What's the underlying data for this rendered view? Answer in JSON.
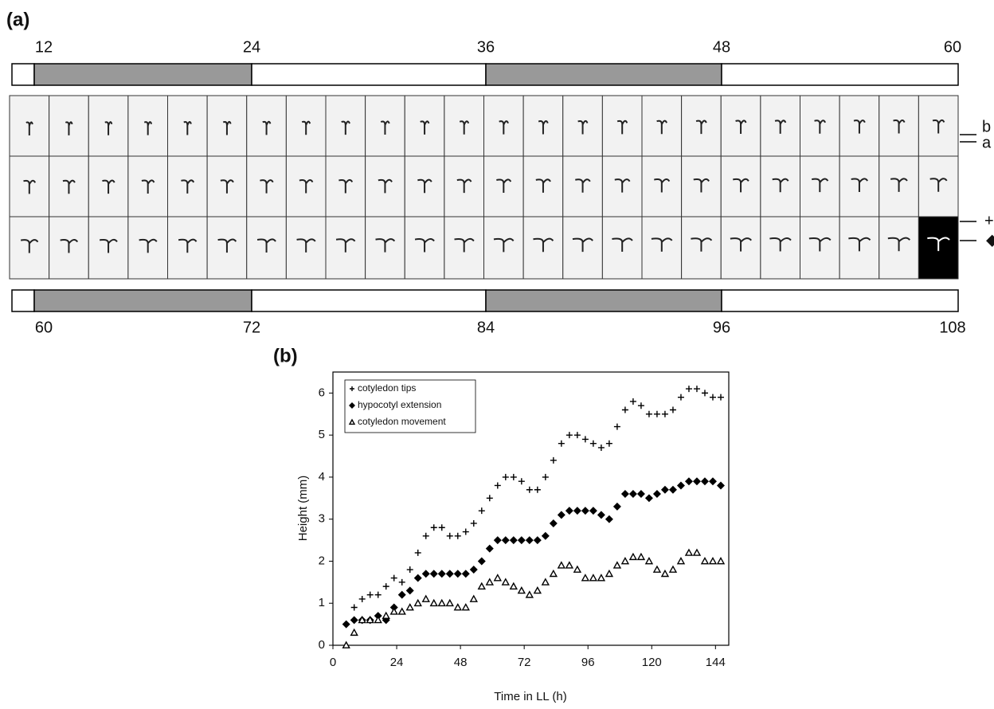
{
  "panel_a": {
    "label": "(a)",
    "top_ticks": [
      12,
      24,
      36,
      48,
      60
    ],
    "bottom_ticks": [
      60,
      72,
      84,
      96,
      108
    ],
    "row_labels": [
      "b",
      "a",
      "+",
      "◆"
    ]
  },
  "chart_data": {
    "type": "scatter",
    "panel_label": "(b)",
    "x_label": "Time in LL (h)",
    "y_label": "Height (mm)",
    "xlim": [
      0,
      149
    ],
    "ylim": [
      0,
      6.5
    ],
    "xticks": [
      0,
      24,
      48,
      72,
      96,
      120,
      144
    ],
    "yticks": [
      0,
      1,
      2,
      3,
      4,
      5,
      6
    ],
    "x": [
      5,
      8,
      11,
      14,
      17,
      20,
      23,
      26,
      29,
      32,
      35,
      38,
      41,
      44,
      47,
      50,
      53,
      56,
      59,
      62,
      65,
      68,
      71,
      74,
      77,
      80,
      83,
      86,
      89,
      92,
      95,
      98,
      101,
      104,
      107,
      110,
      113,
      116,
      119,
      122,
      125,
      128,
      131,
      134,
      137,
      140,
      143,
      146
    ],
    "series": [
      {
        "name": "cotyledon tips",
        "marker": "plus",
        "color": "#000000",
        "values": [
          0.5,
          0.9,
          1.1,
          1.2,
          1.2,
          1.4,
          1.6,
          1.5,
          1.8,
          2.2,
          2.6,
          2.8,
          2.8,
          2.6,
          2.6,
          2.7,
          2.9,
          3.2,
          3.5,
          3.8,
          4.0,
          4.0,
          3.9,
          3.7,
          3.7,
          4.0,
          4.4,
          4.8,
          5.0,
          5.0,
          4.9,
          4.8,
          4.7,
          4.8,
          5.2,
          5.6,
          5.8,
          5.7,
          5.5,
          5.5,
          5.5,
          5.6,
          5.9,
          6.1,
          6.1,
          6.0,
          5.9,
          5.9
        ]
      },
      {
        "name": "hypocotyl extension",
        "marker": "diamond",
        "color": "#000000",
        "values": [
          0.5,
          0.6,
          0.6,
          0.6,
          0.7,
          0.6,
          0.9,
          1.2,
          1.3,
          1.6,
          1.7,
          1.7,
          1.7,
          1.7,
          1.7,
          1.7,
          1.8,
          2.0,
          2.3,
          2.5,
          2.5,
          2.5,
          2.5,
          2.5,
          2.5,
          2.6,
          2.9,
          3.1,
          3.2,
          3.2,
          3.2,
          3.2,
          3.1,
          3.0,
          3.3,
          3.6,
          3.6,
          3.6,
          3.5,
          3.6,
          3.7,
          3.7,
          3.8,
          3.9,
          3.9,
          3.9,
          3.9,
          3.8
        ]
      },
      {
        "name": "cotyledon movement",
        "marker": "triangle",
        "color": "#000000",
        "values": [
          0,
          0.3,
          0.6,
          0.6,
          0.6,
          0.7,
          0.8,
          0.8,
          0.9,
          1.0,
          1.1,
          1.0,
          1.0,
          1.0,
          0.9,
          0.9,
          1.1,
          1.4,
          1.5,
          1.6,
          1.5,
          1.4,
          1.3,
          1.2,
          1.3,
          1.5,
          1.7,
          1.9,
          1.9,
          1.8,
          1.6,
          1.6,
          1.6,
          1.7,
          1.9,
          2.0,
          2.1,
          2.1,
          2.0,
          1.8,
          1.7,
          1.8,
          2.0,
          2.2,
          2.2,
          2.0,
          2.0,
          2.0
        ]
      }
    ]
  }
}
